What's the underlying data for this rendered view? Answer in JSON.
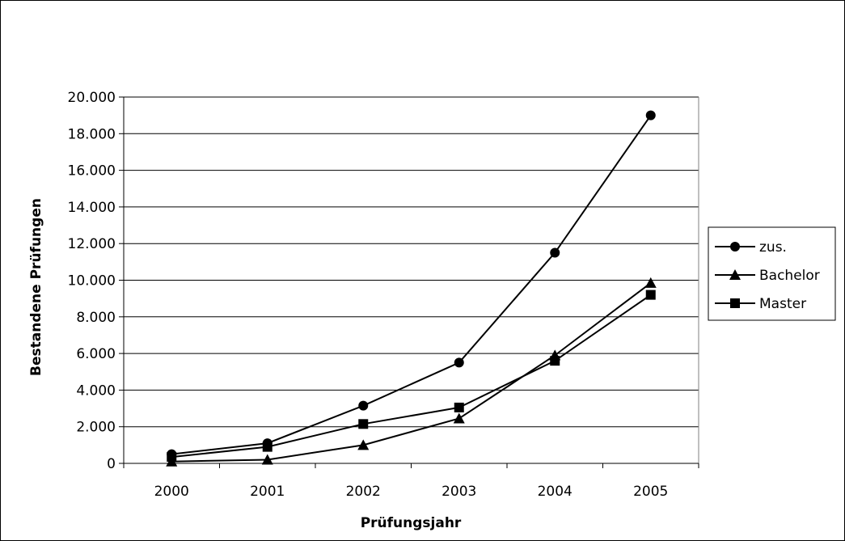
{
  "chart_data": {
    "type": "line",
    "title": "",
    "xlabel": "Prüfungsjahr",
    "ylabel": "Bestandene Prüfungen",
    "categories": [
      "2000",
      "2001",
      "2002",
      "2003",
      "2004",
      "2005"
    ],
    "ylim": [
      0,
      20000
    ],
    "yticks": [
      0,
      2000,
      4000,
      6000,
      8000,
      10000,
      12000,
      14000,
      16000,
      18000,
      20000
    ],
    "ytick_labels": [
      "0",
      "2.000",
      "4.000",
      "6.000",
      "8.000",
      "10.000",
      "12.000",
      "14.000",
      "16.000",
      "18.000",
      "20.000"
    ],
    "grid": true,
    "legend_position": "right",
    "series": [
      {
        "name": "zus.",
        "marker": "circle",
        "values": [
          500,
          1100,
          3150,
          5500,
          11500,
          19000
        ]
      },
      {
        "name": "Bachelor",
        "marker": "triangle",
        "values": [
          100,
          200,
          1000,
          2450,
          5900,
          9850
        ]
      },
      {
        "name": "Master",
        "marker": "square",
        "values": [
          350,
          900,
          2150,
          3050,
          5600,
          9200
        ]
      }
    ]
  }
}
